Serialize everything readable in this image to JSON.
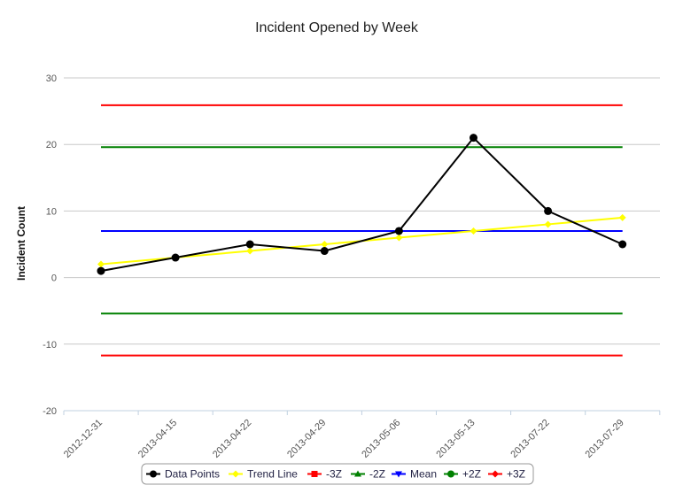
{
  "chart_data": {
    "type": "line",
    "title": "Incident Opened by Week",
    "xlabel": "",
    "ylabel": "Incident Count",
    "categories": [
      "2012-12-31",
      "2013-04-15",
      "2013-04-22",
      "2013-04-29",
      "2013-05-06",
      "2013-05-13",
      "2013-07-22",
      "2013-07-29"
    ],
    "ylim": [
      -20,
      30
    ],
    "yticks": [
      30,
      20,
      10,
      0,
      -10,
      -20
    ],
    "grid": true,
    "legend_position": "bottom",
    "series": [
      {
        "name": "Data Points",
        "color": "#000000",
        "marker": "circle",
        "values": [
          1,
          3,
          5,
          4,
          7,
          21,
          10,
          5
        ]
      },
      {
        "name": "Trend Line",
        "color": "#ffff00",
        "marker": "diamond",
        "values": [
          2,
          3,
          4,
          5,
          6,
          7,
          8,
          9
        ]
      },
      {
        "name": "-3Z",
        "color": "#ff0000",
        "marker": "square",
        "values": [
          -11.7,
          -11.7,
          -11.7,
          -11.7,
          -11.7,
          -11.7,
          -11.7,
          -11.7
        ]
      },
      {
        "name": "-2Z",
        "color": "#008000",
        "marker": "triangle",
        "values": [
          -5.4,
          -5.4,
          -5.4,
          -5.4,
          -5.4,
          -5.4,
          -5.4,
          -5.4
        ]
      },
      {
        "name": "Mean",
        "color": "#0000ff",
        "marker": "triangle-down",
        "values": [
          7,
          7,
          7,
          7,
          7,
          7,
          7,
          7
        ]
      },
      {
        "name": "+2Z",
        "color": "#008000",
        "marker": "circle",
        "values": [
          19.6,
          19.6,
          19.6,
          19.6,
          19.6,
          19.6,
          19.6,
          19.6
        ]
      },
      {
        "name": "+3Z",
        "color": "#ff0000",
        "marker": "diamond",
        "values": [
          25.9,
          25.9,
          25.9,
          25.9,
          25.9,
          25.9,
          25.9,
          25.9
        ]
      }
    ]
  }
}
